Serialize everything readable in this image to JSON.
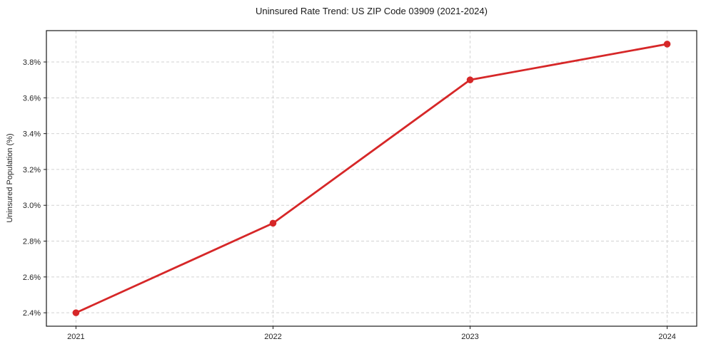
{
  "chart_data": {
    "type": "line",
    "title": "Uninsured Rate Trend: US ZIP Code 03909 (2021-2024)",
    "xlabel": "",
    "ylabel": "Uninsured Population (%)",
    "x": [
      2021,
      2022,
      2023,
      2024
    ],
    "x_tick_labels": [
      "2021",
      "2022",
      "2023",
      "2024"
    ],
    "series": [
      {
        "name": "uninsured-rate",
        "values": [
          2.4,
          2.9,
          3.7,
          3.9
        ]
      }
    ],
    "y_ticks": [
      2.4,
      2.6,
      2.8,
      3.0,
      3.2,
      3.4,
      3.6,
      3.8
    ],
    "y_tick_labels": [
      "2.4%",
      "2.6%",
      "2.8%",
      "3.0%",
      "3.2%",
      "3.4%",
      "3.6%",
      "3.8%"
    ],
    "xlim": [
      2020.85,
      2024.15
    ],
    "ylim": [
      2.325,
      3.975
    ],
    "grid": true,
    "legend_position": "none",
    "colors": {
      "line": "#d62728",
      "marker": "#d62728",
      "grid": "#d2d2d2",
      "spine": "#1a1a1a",
      "tick_text": "#262626",
      "background": "#ffffff"
    }
  }
}
